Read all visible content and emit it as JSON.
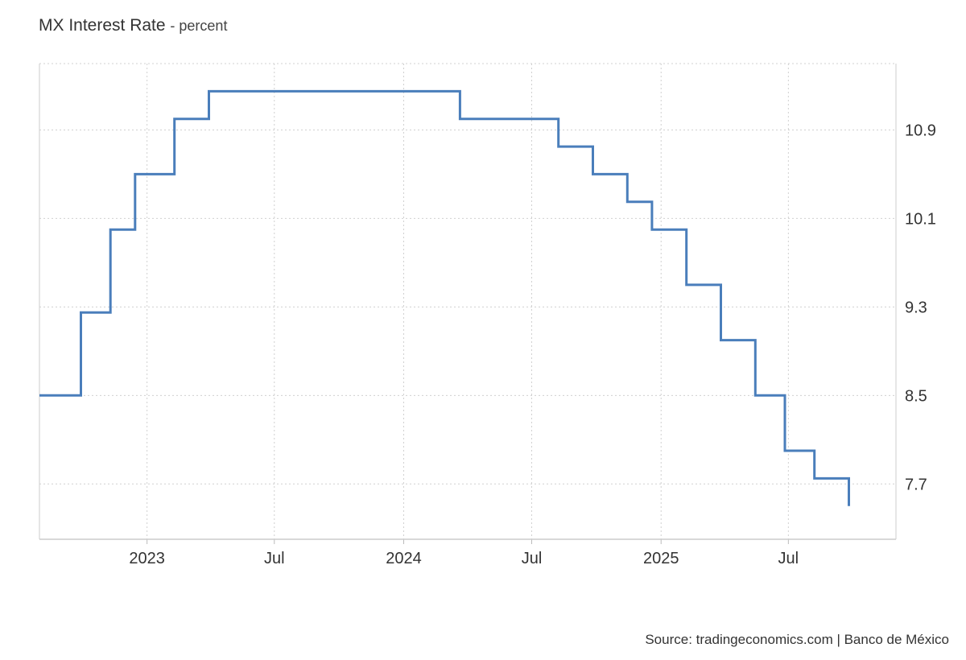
{
  "header": {
    "title": "MX Interest Rate",
    "unit": "- percent"
  },
  "footer": {
    "source": "Source: tradingeconomics.com | Banco de México"
  },
  "chart_data": {
    "type": "line",
    "step": true,
    "title": "MX Interest Rate",
    "subtitle": "percent",
    "xlabel": "",
    "ylabel": "",
    "xlim": [
      "2022-08-01",
      "2025-12-01"
    ],
    "ylim": [
      7.2,
      11.5
    ],
    "y_ticks": [
      7.7,
      8.5,
      9.3,
      10.1,
      10.9
    ],
    "x_ticks": [
      {
        "date": "2023-01-01",
        "label": "2023"
      },
      {
        "date": "2023-07-01",
        "label": "Jul"
      },
      {
        "date": "2024-01-01",
        "label": "2024"
      },
      {
        "date": "2024-07-01",
        "label": "Jul"
      },
      {
        "date": "2025-01-01",
        "label": "2025"
      },
      {
        "date": "2025-07-01",
        "label": "Jul"
      }
    ],
    "y_axis_side": "right",
    "grid": true,
    "color": "#4a7ebb",
    "series": [
      {
        "points": [
          {
            "x": "2022-08-01",
            "y": 8.5
          },
          {
            "x": "2022-09-29",
            "y": 9.25
          },
          {
            "x": "2022-11-10",
            "y": 10.0
          },
          {
            "x": "2022-12-15",
            "y": 10.5
          },
          {
            "x": "2023-02-09",
            "y": 11.0
          },
          {
            "x": "2023-03-30",
            "y": 11.25
          },
          {
            "x": "2024-03-21",
            "y": 11.0
          },
          {
            "x": "2024-08-08",
            "y": 10.75
          },
          {
            "x": "2024-09-26",
            "y": 10.5
          },
          {
            "x": "2024-11-14",
            "y": 10.25
          },
          {
            "x": "2024-12-19",
            "y": 10.0
          },
          {
            "x": "2025-02-06",
            "y": 9.5
          },
          {
            "x": "2025-03-27",
            "y": 9.0
          },
          {
            "x": "2025-05-15",
            "y": 8.5
          },
          {
            "x": "2025-06-26",
            "y": 8.0
          },
          {
            "x": "2025-08-07",
            "y": 7.75
          },
          {
            "x": "2025-09-25",
            "y": 7.5
          }
        ]
      }
    ]
  }
}
